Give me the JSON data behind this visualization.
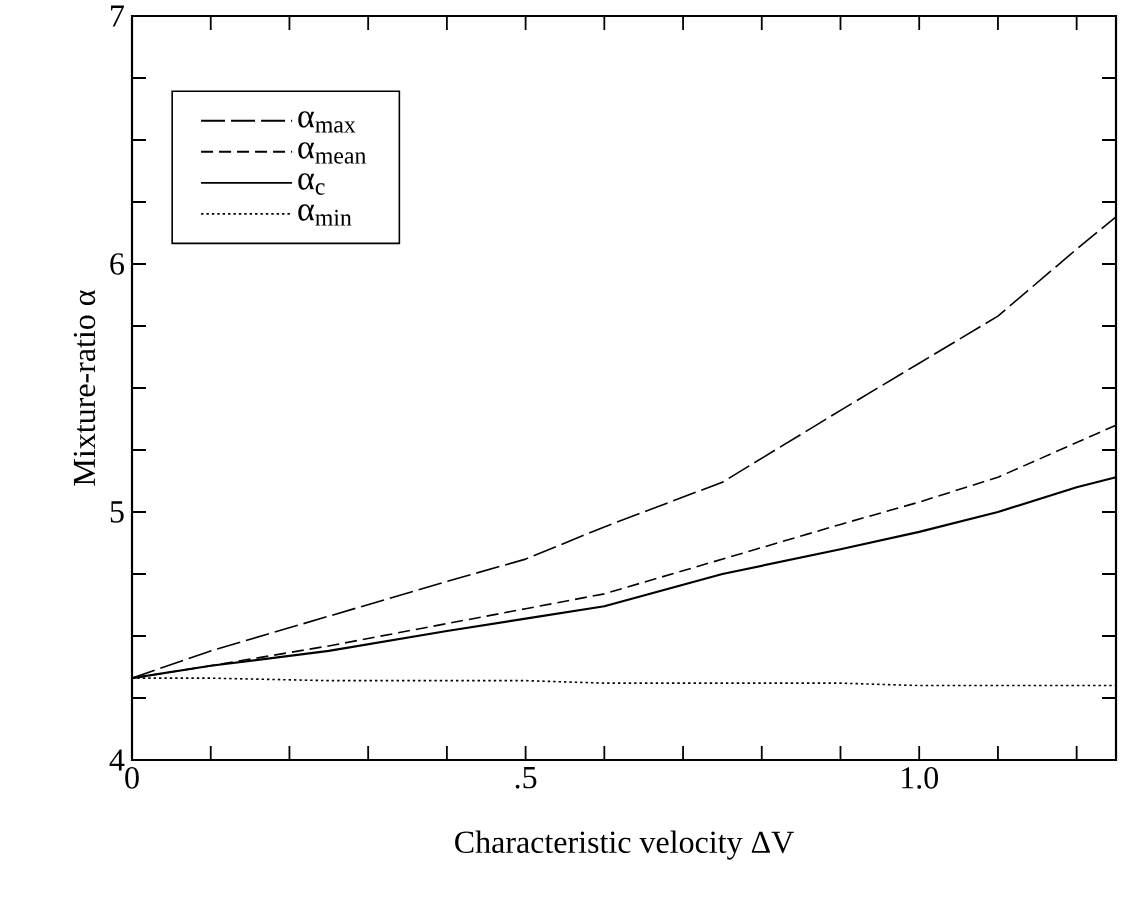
{
  "chart_data": {
    "type": "line",
    "xlabel": "Characteristic velocity ΔV",
    "ylabel": "Mixture-ratio α",
    "x": [
      0,
      0.1,
      0.25,
      0.4,
      0.5,
      0.6,
      0.75,
      0.9,
      1.0,
      1.1,
      1.2,
      1.25
    ],
    "series": [
      {
        "name": "α$_{max}$",
        "color": "#000000",
        "line_style": "dashed",
        "values": [
          4.33,
          4.44,
          4.58,
          4.72,
          4.81,
          4.94,
          5.12,
          5.41,
          5.6,
          5.79,
          6.06,
          6.19
        ]
      },
      {
        "name": "α$_{mean}$",
        "color": "#000000",
        "line_style": "dashed",
        "values": [
          4.33,
          4.38,
          4.46,
          4.55,
          4.61,
          4.67,
          4.81,
          4.95,
          5.04,
          5.14,
          5.28,
          5.35
        ]
      },
      {
        "name": "α$_{c}$",
        "color": "#000000",
        "line_style": "solid",
        "values": [
          4.33,
          4.38,
          4.44,
          4.52,
          4.57,
          4.62,
          4.75,
          4.85,
          4.92,
          5.0,
          5.1,
          5.14
        ]
      },
      {
        "name": "α$_{min}$",
        "color": "#000000",
        "line_style": "dotted",
        "values": [
          4.33,
          4.33,
          4.32,
          4.32,
          4.32,
          4.31,
          4.31,
          4.31,
          4.3,
          4.3,
          4.3,
          4.3
        ]
      }
    ],
    "xlim": [
      0,
      1.25
    ],
    "ylim": [
      4,
      7
    ],
    "xticks": [
      0,
      {
        "value": 0.1,
        "label": null
      },
      {
        "value": 0.2,
        "label": null
      },
      {
        "value": 0.3,
        "label": null
      },
      {
        "value": 0.4,
        "label": null
      },
      {
        "value": 0.5,
        "label": ".5"
      },
      {
        "value": 0.6,
        "label": null
      },
      {
        "value": 0.7,
        "label": null
      },
      {
        "value": 0.8,
        "label": null
      },
      {
        "value": 0.9,
        "label": null
      },
      {
        "value": 1.0,
        "label": "1.0"
      },
      {
        "value": 1.1,
        "label": null
      },
      {
        "value": 1.2,
        "label": null
      }
    ],
    "yticks": [
      4,
      {
        "value": 4.25,
        "label": null
      },
      {
        "value": 4.5,
        "label": null
      },
      {
        "value": 4.75,
        "label": null
      },
      5,
      {
        "value": 5.25,
        "label": null
      },
      {
        "value": 5.5,
        "label": null
      },
      {
        "value": 5.75,
        "label": null
      },
      6,
      {
        "value": 6.25,
        "label": null
      },
      {
        "value": 6.5,
        "label": null
      },
      {
        "value": 6.75,
        "label": null
      },
      7
    ],
    "legend": "top left",
    "grid": false,
    "marker": "none"
  }
}
